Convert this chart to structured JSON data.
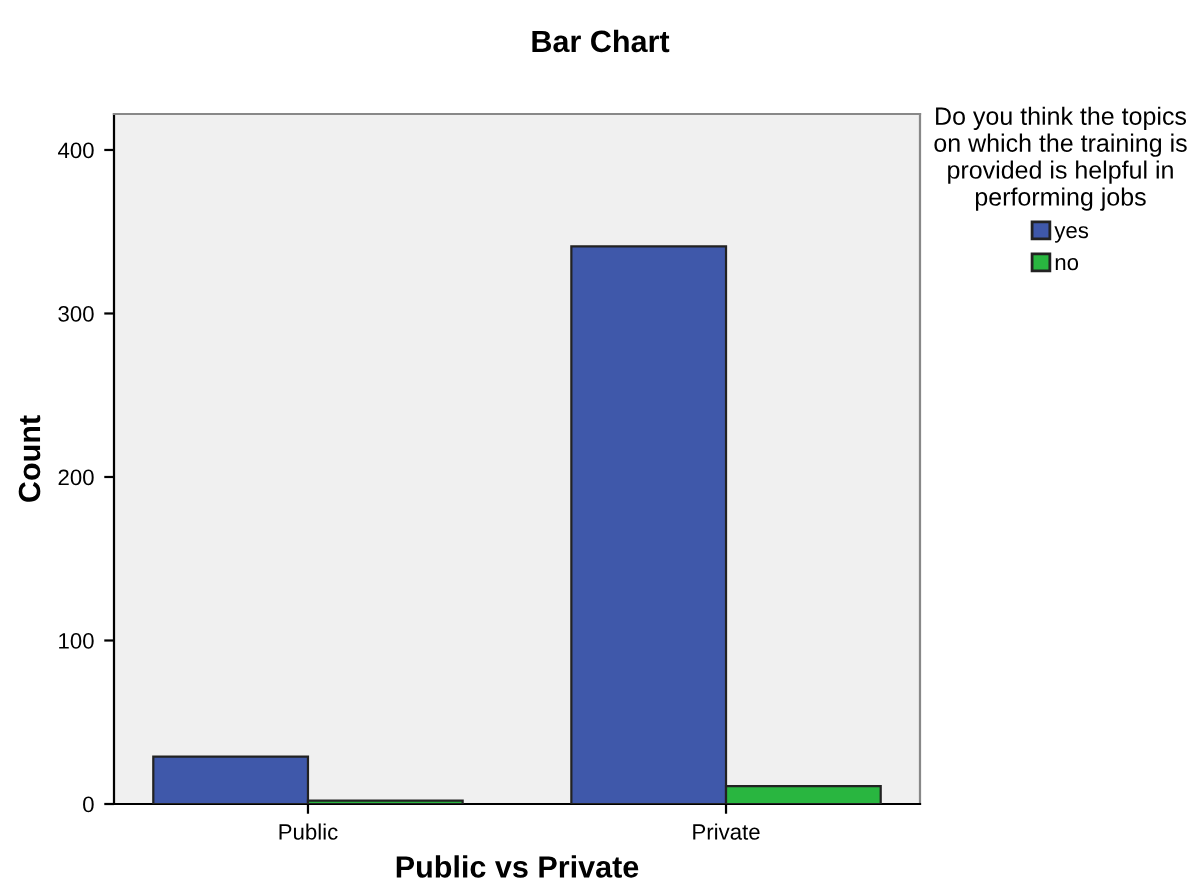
{
  "chart_data": {
    "type": "bar",
    "title": "Bar Chart",
    "xlabel": "Public vs Private",
    "ylabel": "Count",
    "legend_title": "Do you think the topics\non which the training is\nprovided is helpful in\nperforming jobs",
    "categories": [
      "Public",
      "Private"
    ],
    "series": [
      {
        "name": "yes",
        "color": "#3f58aa",
        "values": [
          29,
          341
        ]
      },
      {
        "name": "no",
        "color": "#29b640",
        "values": [
          2,
          11
        ]
      }
    ],
    "ylim": [
      0,
      422
    ],
    "yticks": [
      0,
      100,
      200,
      300,
      400
    ],
    "grid": false,
    "legend": "right"
  }
}
